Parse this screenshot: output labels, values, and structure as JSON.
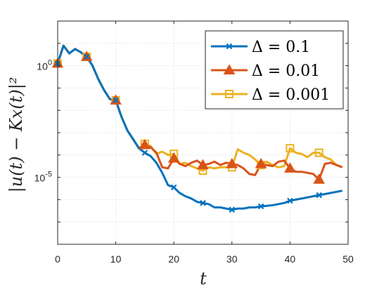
{
  "chart_data": {
    "type": "line",
    "xlabel": "t",
    "ylabel": "|u(t) − Kx(t)|²",
    "xlim": [
      0,
      50
    ],
    "ylim_log10": [
      -8.0,
      2.0
    ],
    "yscale": "log",
    "grid": true,
    "legend_position": "top-right",
    "x_ticks": [
      "0",
      "10",
      "20",
      "30",
      "40",
      "50"
    ],
    "y_ticks": [
      {
        "value": 1,
        "base": "10",
        "exp": "0"
      },
      {
        "value": 1e-05,
        "base": "10",
        "exp": "-5"
      }
    ],
    "series": [
      {
        "name": "Δ = 0.1",
        "color": "#0072BD",
        "marker": "x",
        "x": [
          0,
          1,
          2,
          3,
          4,
          5,
          6,
          7,
          8,
          9,
          10,
          11,
          12,
          13,
          14,
          15,
          16,
          17,
          18,
          19,
          20,
          21,
          22,
          23,
          24,
          25,
          26,
          27,
          28,
          29,
          30,
          31,
          32,
          33,
          34,
          35,
          36,
          37,
          38,
          39,
          40,
          41,
          42,
          43,
          44,
          45,
          46,
          47,
          48,
          49
        ],
        "log10_y": [
          0.1,
          0.9,
          0.55,
          0.75,
          0.6,
          0.4,
          0.0,
          -0.6,
          -1.1,
          -1.5,
          -1.55,
          -2.3,
          -2.9,
          -3.3,
          -3.7,
          -3.9,
          -4.05,
          -4.35,
          -4.8,
          -5.35,
          -5.45,
          -5.7,
          -5.85,
          -5.95,
          -6.1,
          -6.15,
          -6.2,
          -6.35,
          -6.35,
          -6.4,
          -6.45,
          -6.4,
          -6.4,
          -6.35,
          -6.35,
          -6.3,
          -6.28,
          -6.25,
          -6.2,
          -6.15,
          -6.05,
          -6.0,
          -5.95,
          -5.9,
          -5.85,
          -5.8,
          -5.75,
          -5.7,
          -5.65,
          -5.6
        ],
        "marker_x": [
          0,
          5,
          10,
          15,
          20,
          25,
          30,
          35,
          40,
          45
        ]
      },
      {
        "name": "Δ = 0.01",
        "color": "#D95319",
        "marker": "triangle",
        "x": [
          0,
          1,
          2,
          3,
          4,
          5,
          6,
          7,
          8,
          9,
          10,
          11,
          12,
          13,
          14,
          15,
          16,
          17,
          18,
          19,
          20,
          21,
          22,
          23,
          24,
          25,
          26,
          27,
          28,
          29,
          30,
          31,
          32,
          33,
          34,
          35,
          36,
          37,
          38,
          39,
          40,
          41,
          42,
          43,
          44,
          45,
          46,
          47,
          48,
          49
        ],
        "log10_y": [
          0.1,
          0.9,
          0.55,
          0.75,
          0.6,
          0.4,
          0.0,
          -0.6,
          -1.1,
          -1.5,
          -1.55,
          -2.3,
          -2.9,
          -3.3,
          -3.7,
          -3.55,
          -3.65,
          -3.9,
          -4.55,
          -4.6,
          -4.15,
          -4.4,
          -4.5,
          -4.35,
          -4.25,
          -4.45,
          -4.4,
          -4.3,
          -4.45,
          -4.35,
          -4.4,
          -4.45,
          -4.6,
          -4.85,
          -4.9,
          -4.4,
          -4.45,
          -4.5,
          -4.3,
          -4.25,
          -4.6,
          -4.75,
          -4.75,
          -4.8,
          -4.85,
          -5.1,
          -4.4,
          -4.35,
          -4.45,
          -4.55
        ],
        "marker_x": [
          0,
          5,
          10,
          15,
          20,
          25,
          30,
          35,
          40,
          45
        ]
      },
      {
        "name": "Δ = 0.001",
        "color": "#EDB120",
        "marker": "square",
        "x": [
          0,
          1,
          2,
          3,
          4,
          5,
          6,
          7,
          8,
          9,
          10,
          11,
          12,
          13,
          14,
          15,
          16,
          17,
          18,
          19,
          20,
          21,
          22,
          23,
          24,
          25,
          26,
          27,
          28,
          29,
          30,
          31,
          32,
          33,
          34,
          35,
          36,
          37,
          38,
          39,
          40,
          41,
          42,
          43,
          44,
          45,
          46,
          47,
          48,
          49
        ],
        "log10_y": [
          0.1,
          0.9,
          0.55,
          0.75,
          0.6,
          0.4,
          0.0,
          -0.6,
          -1.1,
          -1.5,
          -1.55,
          -2.3,
          -2.9,
          -3.3,
          -3.7,
          -3.5,
          -3.6,
          -3.95,
          -3.85,
          -4.0,
          -3.95,
          -4.4,
          -4.35,
          -4.5,
          -4.6,
          -4.7,
          -4.55,
          -4.6,
          -4.55,
          -4.55,
          -4.55,
          -3.75,
          -3.9,
          -4.0,
          -4.2,
          -4.45,
          -4.3,
          -4.45,
          -4.55,
          -4.5,
          -3.7,
          -3.9,
          -3.95,
          -4.1,
          -3.9,
          -3.9,
          -4.1,
          -4.2,
          -4.45,
          -4.55
        ],
        "marker_x": [
          0,
          5,
          10,
          15,
          20,
          25,
          30,
          35,
          40,
          45
        ]
      }
    ]
  }
}
